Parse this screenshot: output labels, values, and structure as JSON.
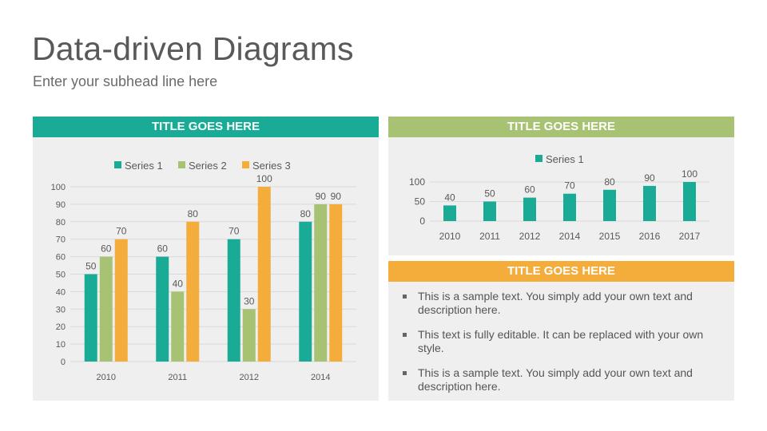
{
  "slide": {
    "title": "Data-driven Diagrams",
    "subhead": "Enter your subhead line here"
  },
  "colors": {
    "teal": "#1aab96",
    "green": "#a7c273",
    "orange": "#f4ac3b",
    "panel_bg": "#efefef"
  },
  "panels": {
    "left": {
      "header": "TITLE GOES HERE"
    },
    "right_top": {
      "header": "TITLE GOES HERE"
    },
    "right_bottom": {
      "header": "TITLE GOES HERE",
      "bullets": [
        "This is a sample text. You simply add your own text and description here.",
        "This text is fully editable. It can be replaced with your own style.",
        "This is a sample text. You simply add your own text and description here."
      ]
    }
  },
  "chart_data": [
    {
      "type": "bar",
      "categories": [
        "2010",
        "2011",
        "2012",
        "2014"
      ],
      "series": [
        {
          "name": "Series 1",
          "values": [
            50,
            60,
            70,
            80
          ],
          "color": "#1aab96"
        },
        {
          "name": "Series 2",
          "values": [
            60,
            40,
            30,
            90
          ],
          "color": "#a7c273"
        },
        {
          "name": "Series 3",
          "values": [
            70,
            80,
            100,
            90
          ],
          "color": "#f4ac3b"
        }
      ],
      "ylim": [
        0,
        100
      ],
      "yticks": [
        0,
        10,
        20,
        30,
        40,
        50,
        60,
        70,
        80,
        90,
        100
      ],
      "grid": true,
      "data_labels": true,
      "legend": "top"
    },
    {
      "type": "bar",
      "categories": [
        "2010",
        "2011",
        "2012",
        "2014",
        "2015",
        "2016",
        "2017"
      ],
      "series": [
        {
          "name": "Series 1",
          "values": [
            40,
            50,
            60,
            70,
            80,
            90,
            100
          ],
          "color": "#1aab96"
        }
      ],
      "ylim": [
        0,
        100
      ],
      "yticks": [
        0,
        50,
        100
      ],
      "grid": true,
      "data_labels": true,
      "legend": "top"
    }
  ]
}
